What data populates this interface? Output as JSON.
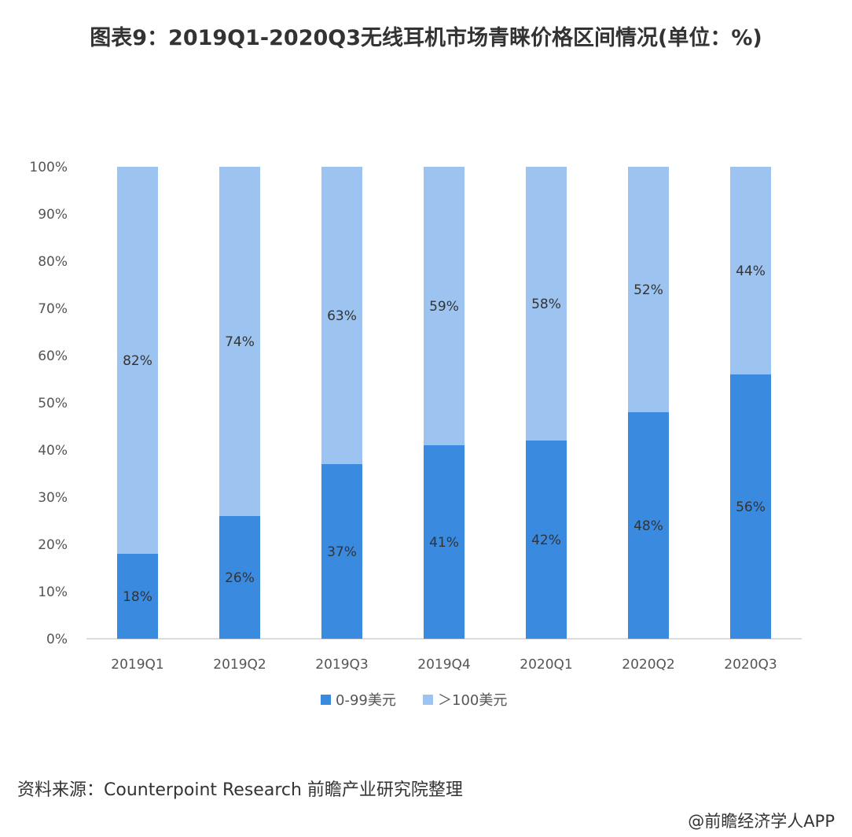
{
  "title": "图表9：2019Q1-2020Q3无线耳机市场青睐价格区间情况(单位：%)",
  "source": "资料来源：Counterpoint Research 前瞻产业研究院整理",
  "credit": "@前瞻经济学人APP",
  "chart_data": {
    "type": "bar",
    "stacked": true,
    "categories": [
      "2019Q1",
      "2019Q2",
      "2019Q3",
      "2019Q4",
      "2020Q1",
      "2020Q2",
      "2020Q3"
    ],
    "series": [
      {
        "name": "0-99美元",
        "values": [
          18,
          26,
          37,
          41,
          42,
          48,
          56
        ],
        "labels": [
          "18%",
          "26%",
          "37%",
          "41%",
          "42%",
          "48%",
          "56%"
        ],
        "color": "#3a8ae0"
      },
      {
        "name": "＞100美元",
        "values": [
          82,
          74,
          63,
          59,
          58,
          52,
          44
        ],
        "labels": [
          "82%",
          "74%",
          "63%",
          "59%",
          "58%",
          "52%",
          "44%"
        ],
        "color": "#9dc3f0"
      }
    ],
    "ylim": [
      0,
      100
    ],
    "yticks": [
      0,
      10,
      20,
      30,
      40,
      50,
      60,
      70,
      80,
      90,
      100
    ],
    "ytick_labels": [
      "0%",
      "10%",
      "20%",
      "30%",
      "40%",
      "50%",
      "60%",
      "70%",
      "80%",
      "90%",
      "100%"
    ],
    "xlabel": "",
    "ylabel": "",
    "grid": false,
    "legend_position": "bottom"
  }
}
